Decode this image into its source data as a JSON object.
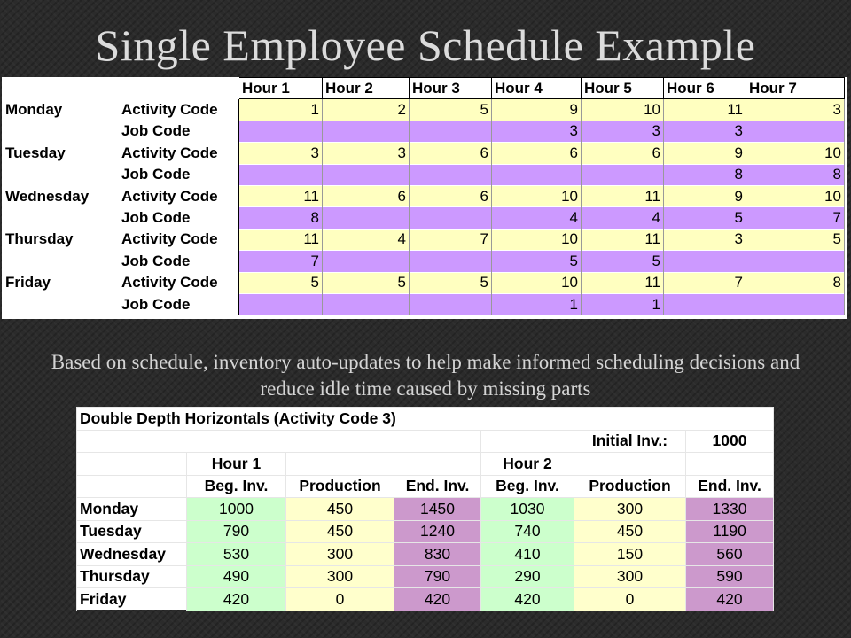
{
  "slide": {
    "title": "Single Employee Schedule Example",
    "description_line1": "Based on schedule, inventory auto-updates to help make informed scheduling decisions and",
    "description_line2": "reduce idle time caused by missing parts"
  },
  "schedule": {
    "hours": [
      "Hour 1",
      "Hour 2",
      "Hour 3",
      "Hour 4",
      "Hour 5",
      "Hour 6",
      "Hour 7"
    ],
    "activity_label": "Activity Code",
    "job_label": "Job Code",
    "days": [
      {
        "name": "Monday",
        "activity": [
          "1",
          "2",
          "5",
          "9",
          "10",
          "11",
          "3"
        ],
        "job": [
          "",
          "",
          "",
          "3",
          "3",
          "3",
          ""
        ]
      },
      {
        "name": "Tuesday",
        "activity": [
          "3",
          "3",
          "6",
          "6",
          "6",
          "9",
          "10"
        ],
        "job": [
          "",
          "",
          "",
          "",
          "",
          "8",
          "8"
        ]
      },
      {
        "name": "Wednesday",
        "activity": [
          "11",
          "6",
          "6",
          "10",
          "11",
          "9",
          "10"
        ],
        "job": [
          "8",
          "",
          "",
          "4",
          "4",
          "5",
          "7"
        ]
      },
      {
        "name": "Thursday",
        "activity": [
          "11",
          "4",
          "7",
          "10",
          "11",
          "3",
          "5"
        ],
        "job": [
          "7",
          "",
          "",
          "5",
          "5",
          "",
          ""
        ]
      },
      {
        "name": "Friday",
        "activity": [
          "5",
          "5",
          "5",
          "10",
          "11",
          "7",
          "8"
        ],
        "job": [
          "",
          "",
          "",
          "1",
          "1",
          "",
          ""
        ]
      }
    ]
  },
  "inventory": {
    "title": "Double Depth Horizontals (Activity Code 3)",
    "initial_label": "Initial Inv.:",
    "initial_value": "1000",
    "hour1_label": "Hour 1",
    "hour2_label": "Hour 2",
    "col_beg": "Beg. Inv.",
    "col_prod": "Production",
    "col_end": "End. Inv.",
    "rows": [
      {
        "day": "Monday",
        "h1": [
          "1000",
          "450",
          "1450"
        ],
        "h2": [
          "1030",
          "300",
          "1330"
        ]
      },
      {
        "day": "Tuesday",
        "h1": [
          "790",
          "450",
          "1240"
        ],
        "h2": [
          "740",
          "450",
          "1190"
        ]
      },
      {
        "day": "Wednesday",
        "h1": [
          "530",
          "300",
          "830"
        ],
        "h2": [
          "410",
          "150",
          "560"
        ]
      },
      {
        "day": "Thursday",
        "h1": [
          "490",
          "300",
          "790"
        ],
        "h2": [
          "290",
          "300",
          "590"
        ]
      },
      {
        "day": "Friday",
        "h1": [
          "420",
          "0",
          "420"
        ],
        "h2": [
          "420",
          "0",
          "420"
        ]
      }
    ]
  },
  "colors": {
    "activity": "#ffffc0",
    "job": "#cc99ff",
    "beg_inv": "#ccffcc",
    "production": "#ffffcc",
    "end_inv": "#cc99cc"
  }
}
